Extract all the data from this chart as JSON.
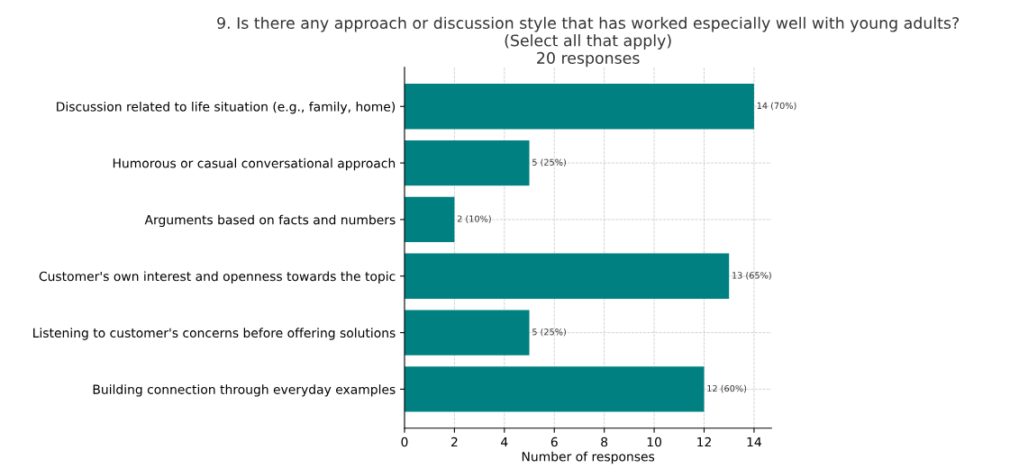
{
  "chart_data": {
    "type": "bar",
    "orientation": "horizontal",
    "title": "9. Is there any approach or discussion style that has worked especially well with young adults?\n(Select all that apply)\n20 responses",
    "xlabel": "Number of responses",
    "categories": [
      "Discussion related to life situation (e.g., family, home)",
      "Humorous or casual conversational approach",
      "Arguments based on facts and numbers",
      "Customer's own interest and openness towards the topic",
      "Listening to customer's concerns before offering solutions",
      "Building connection through everyday examples"
    ],
    "values": [
      14,
      5,
      2,
      13,
      5,
      12
    ],
    "value_labels": [
      "14 (70%)",
      "5 (25%)",
      "2 (10%)",
      "13 (65%)",
      "5 (25%)",
      "12 (60%)"
    ],
    "color": "#008080",
    "xlim": [
      0,
      14.7
    ],
    "xticks": [
      0,
      2,
      4,
      6,
      8,
      10,
      12,
      14
    ],
    "grid": true
  }
}
